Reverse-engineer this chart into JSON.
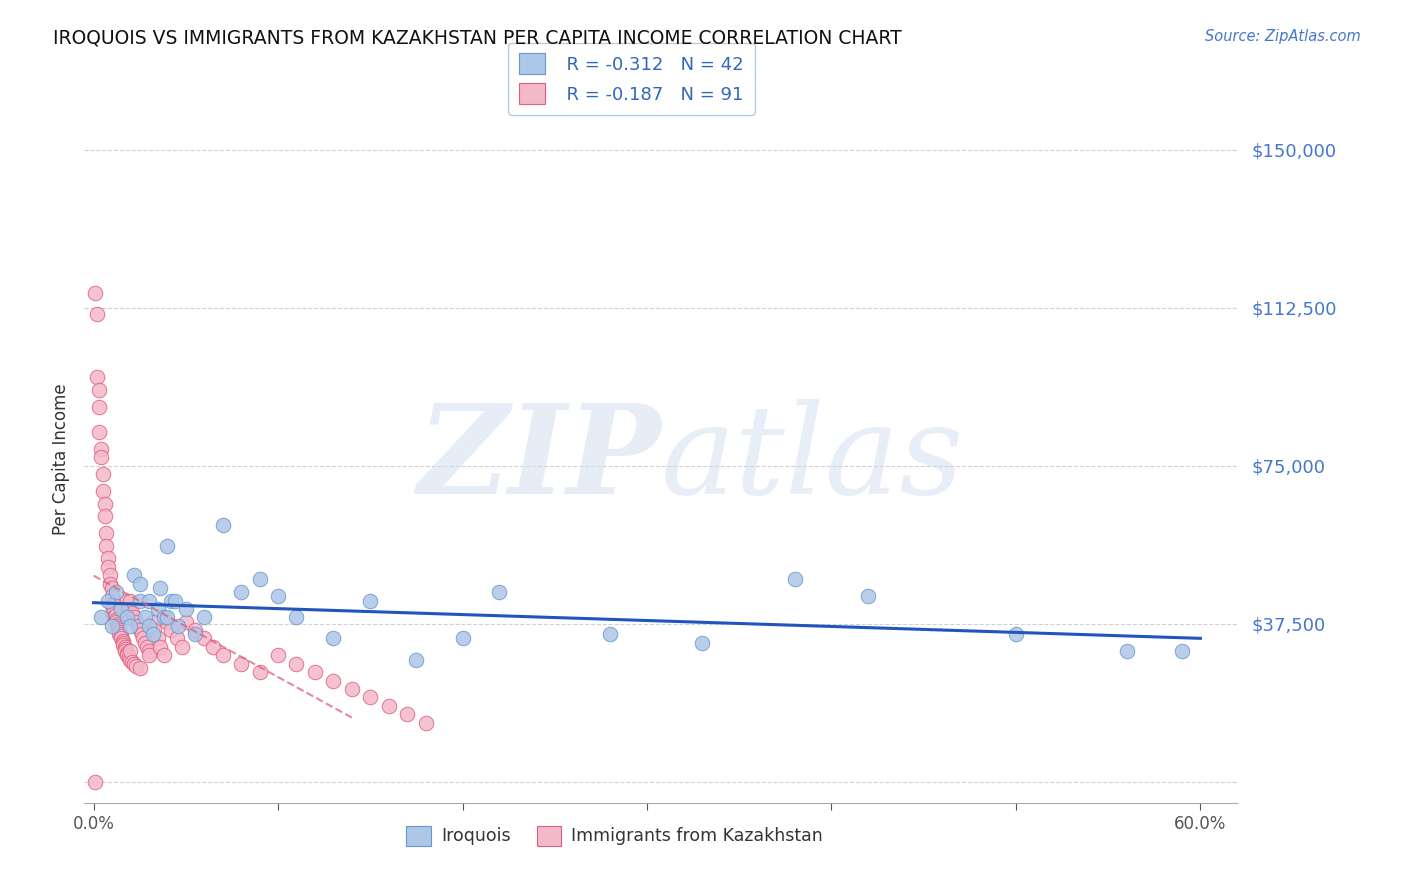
{
  "title": "IROQUOIS VS IMMIGRANTS FROM KAZAKHSTAN PER CAPITA INCOME CORRELATION CHART",
  "source": "Source: ZipAtlas.com",
  "ylabel": "Per Capita Income",
  "xlim": [
    -0.005,
    0.62
  ],
  "ylim": [
    -5000,
    158000
  ],
  "yticks": [
    0,
    37500,
    75000,
    112500,
    150000
  ],
  "ytick_labels": [
    "",
    "$37,500",
    "$75,000",
    "$112,500",
    "$150,000"
  ],
  "xticks": [
    0.0,
    0.1,
    0.2,
    0.3,
    0.4,
    0.5,
    0.6
  ],
  "xtick_labels": [
    "0.0%",
    "",
    "",
    "",
    "",
    "",
    "60.0%"
  ],
  "blue_color": "#aec6e8",
  "blue_edge": "#6699cc",
  "pink_color": "#f4b8cb",
  "pink_edge": "#e0607a",
  "blue_line_color": "#2255bb",
  "pink_line_color": "#e0607a",
  "blue_scatter_x": [
    0.004,
    0.008,
    0.01,
    0.012,
    0.015,
    0.018,
    0.02,
    0.022,
    0.025,
    0.025,
    0.028,
    0.03,
    0.03,
    0.032,
    0.035,
    0.036,
    0.038,
    0.04,
    0.04,
    0.042,
    0.044,
    0.046,
    0.05,
    0.055,
    0.06,
    0.07,
    0.08,
    0.09,
    0.1,
    0.11,
    0.13,
    0.15,
    0.175,
    0.2,
    0.22,
    0.28,
    0.33,
    0.38,
    0.42,
    0.5,
    0.56,
    0.59
  ],
  "blue_scatter_y": [
    39000,
    43000,
    37000,
    45000,
    41000,
    39000,
    37000,
    49000,
    43000,
    47000,
    39000,
    37000,
    43000,
    35000,
    41000,
    46000,
    39000,
    56000,
    39000,
    43000,
    43000,
    37000,
    41000,
    35000,
    39000,
    61000,
    45000,
    48000,
    44000,
    39000,
    34000,
    43000,
    29000,
    34000,
    45000,
    35000,
    33000,
    48000,
    44000,
    35000,
    31000,
    31000
  ],
  "pink_scatter_x": [
    0.001,
    0.002,
    0.002,
    0.003,
    0.003,
    0.003,
    0.004,
    0.004,
    0.005,
    0.005,
    0.006,
    0.006,
    0.007,
    0.007,
    0.008,
    0.008,
    0.009,
    0.009,
    0.01,
    0.01,
    0.01,
    0.01,
    0.011,
    0.011,
    0.011,
    0.012,
    0.012,
    0.012,
    0.013,
    0.013,
    0.013,
    0.014,
    0.014,
    0.014,
    0.015,
    0.015,
    0.016,
    0.016,
    0.016,
    0.017,
    0.017,
    0.017,
    0.018,
    0.018,
    0.018,
    0.019,
    0.019,
    0.02,
    0.02,
    0.02,
    0.021,
    0.021,
    0.022,
    0.022,
    0.023,
    0.023,
    0.024,
    0.025,
    0.025,
    0.026,
    0.027,
    0.028,
    0.029,
    0.03,
    0.03,
    0.032,
    0.033,
    0.035,
    0.036,
    0.038,
    0.04,
    0.042,
    0.045,
    0.048,
    0.05,
    0.055,
    0.06,
    0.065,
    0.07,
    0.08,
    0.09,
    0.1,
    0.11,
    0.12,
    0.13,
    0.14,
    0.15,
    0.16,
    0.17,
    0.18,
    0.001
  ],
  "pink_scatter_y": [
    116000,
    111000,
    96000,
    93000,
    89000,
    83000,
    79000,
    77000,
    73000,
    69000,
    66000,
    63000,
    59000,
    56000,
    53000,
    51000,
    49000,
    47000,
    46000,
    44000,
    42000,
    40000,
    42000,
    41000,
    39000,
    39500,
    38500,
    38000,
    37500,
    37000,
    36500,
    36000,
    35500,
    35000,
    34500,
    34000,
    33500,
    33000,
    32500,
    32000,
    31500,
    31000,
    30500,
    30000,
    43000,
    29500,
    41000,
    29000,
    31000,
    43000,
    28500,
    40000,
    28000,
    39000,
    27500,
    38000,
    37000,
    36000,
    27000,
    35000,
    34000,
    33000,
    32000,
    31000,
    30000,
    38000,
    36000,
    34000,
    32000,
    30000,
    38000,
    36000,
    34000,
    32000,
    38000,
    36000,
    34000,
    32000,
    30000,
    28000,
    26000,
    30000,
    28000,
    26000,
    24000,
    22000,
    20000,
    18000,
    16000,
    14000,
    0
  ]
}
